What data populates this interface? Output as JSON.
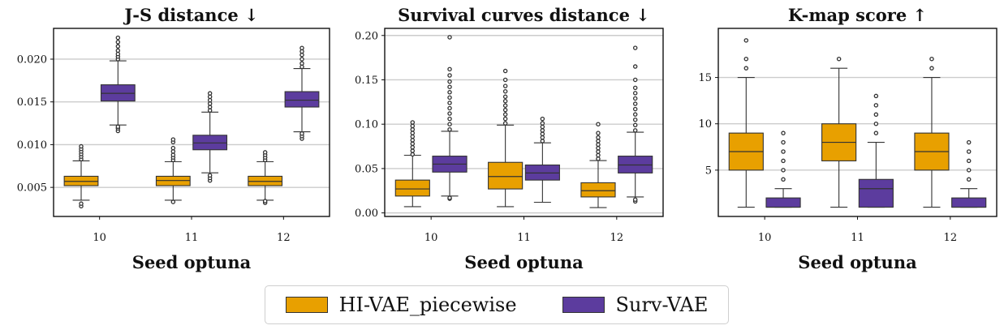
{
  "chart_data": [
    {
      "type": "box",
      "title": "J-S distance ↓",
      "xlabel": "Seed optuna",
      "ylabel": "",
      "categories": [
        "10",
        "11",
        "12"
      ],
      "ylim": [
        0.0016,
        0.0236
      ],
      "yticks": [
        0.005,
        0.01,
        0.015,
        0.02
      ],
      "ytick_labels": [
        "0.005",
        "0.010",
        "0.015",
        "0.020"
      ],
      "grid": "horizontal",
      "series": [
        {
          "name": "HI-VAE_piecewise",
          "boxes": [
            {
              "whislo": 0.0035,
              "q1": 0.0052,
              "med": 0.0057,
              "q3": 0.0063,
              "whishi": 0.0081,
              "fliers": [
                0.0028,
                0.0031,
                0.0083,
                0.0086,
                0.0089,
                0.0092,
                0.0095,
                0.0098
              ]
            },
            {
              "whislo": 0.0035,
              "q1": 0.0052,
              "med": 0.0058,
              "q3": 0.0063,
              "whishi": 0.008,
              "fliers": [
                0.0033,
                0.0082,
                0.0085,
                0.0088,
                0.0092,
                0.0096,
                0.0103,
                0.0106
              ]
            },
            {
              "whislo": 0.0035,
              "q1": 0.0052,
              "med": 0.0057,
              "q3": 0.0063,
              "whishi": 0.008,
              "fliers": [
                0.0032,
                0.0034,
                0.0082,
                0.0085,
                0.0088,
                0.0091
              ]
            }
          ]
        },
        {
          "name": "Surv-VAE",
          "boxes": [
            {
              "whislo": 0.0123,
              "q1": 0.0151,
              "med": 0.016,
              "q3": 0.017,
              "whishi": 0.0198,
              "fliers": [
                0.0116,
                0.0119,
                0.0121,
                0.02,
                0.0203,
                0.0206,
                0.021,
                0.0215,
                0.022,
                0.0225
              ]
            },
            {
              "whislo": 0.0067,
              "q1": 0.0094,
              "med": 0.0102,
              "q3": 0.0111,
              "whishi": 0.0138,
              "fliers": [
                0.0058,
                0.0061,
                0.0064,
                0.014,
                0.0144,
                0.0148,
                0.0152,
                0.0156,
                0.016
              ]
            },
            {
              "whislo": 0.0115,
              "q1": 0.0144,
              "med": 0.0152,
              "q3": 0.0162,
              "whishi": 0.0189,
              "fliers": [
                0.0107,
                0.011,
                0.0113,
                0.0191,
                0.0195,
                0.02,
                0.0205,
                0.0209,
                0.0213
              ]
            }
          ]
        }
      ]
    },
    {
      "type": "box",
      "title": "Survival curves distance ↓",
      "xlabel": "Seed optuna",
      "ylabel": "",
      "categories": [
        "10",
        "11",
        "12"
      ],
      "ylim": [
        -0.004,
        0.208
      ],
      "yticks": [
        0.0,
        0.05,
        0.1,
        0.15,
        0.2
      ],
      "ytick_labels": [
        "0.00",
        "0.05",
        "0.10",
        "0.15",
        "0.20"
      ],
      "grid": "horizontal",
      "series": [
        {
          "name": "HI-VAE_piecewise",
          "boxes": [
            {
              "whislo": 0.007,
              "q1": 0.019,
              "med": 0.027,
              "q3": 0.037,
              "whishi": 0.065,
              "fliers": [
                0.066,
                0.07,
                0.074,
                0.078,
                0.082,
                0.086,
                0.09,
                0.094,
                0.098,
                0.102
              ]
            },
            {
              "whislo": 0.007,
              "q1": 0.027,
              "med": 0.041,
              "q3": 0.057,
              "whishi": 0.099,
              "fliers": [
                0.101,
                0.106,
                0.111,
                0.116,
                0.121,
                0.126,
                0.131,
                0.137,
                0.143,
                0.15,
                0.16
              ]
            },
            {
              "whislo": 0.006,
              "q1": 0.018,
              "med": 0.025,
              "q3": 0.034,
              "whishi": 0.059,
              "fliers": [
                0.061,
                0.065,
                0.069,
                0.073,
                0.077,
                0.081,
                0.085,
                0.09,
                0.1
              ]
            }
          ]
        },
        {
          "name": "Surv-VAE",
          "boxes": [
            {
              "whislo": 0.019,
              "q1": 0.046,
              "med": 0.055,
              "q3": 0.064,
              "whishi": 0.092,
              "fliers": [
                0.016,
                0.017,
                0.094,
                0.1,
                0.106,
                0.112,
                0.118,
                0.124,
                0.13,
                0.136,
                0.142,
                0.148,
                0.155,
                0.162,
                0.198
              ]
            },
            {
              "whislo": 0.012,
              "q1": 0.037,
              "med": 0.045,
              "q3": 0.054,
              "whishi": 0.079,
              "fliers": [
                0.081,
                0.085,
                0.089,
                0.093,
                0.097,
                0.101,
                0.106
              ]
            },
            {
              "whislo": 0.018,
              "q1": 0.045,
              "med": 0.054,
              "q3": 0.064,
              "whishi": 0.091,
              "fliers": [
                0.013,
                0.015,
                0.093,
                0.099,
                0.105,
                0.111,
                0.117,
                0.123,
                0.129,
                0.135,
                0.141,
                0.15,
                0.165,
                0.186
              ]
            }
          ]
        }
      ]
    },
    {
      "type": "box",
      "title": "K-map score ↑",
      "xlabel": "Seed optuna",
      "ylabel": "",
      "categories": [
        "10",
        "11",
        "12"
      ],
      "ylim": [
        0,
        20.3
      ],
      "yticks": [
        5,
        10,
        15
      ],
      "ytick_labels": [
        "5",
        "10",
        "15"
      ],
      "grid": "horizontal",
      "series": [
        {
          "name": "HI-VAE_piecewise",
          "boxes": [
            {
              "whislo": 1,
              "q1": 5,
              "med": 7,
              "q3": 9,
              "whishi": 15,
              "fliers": [
                16,
                17,
                19
              ]
            },
            {
              "whislo": 1,
              "q1": 6,
              "med": 8,
              "q3": 10,
              "whishi": 16,
              "fliers": [
                17
              ]
            },
            {
              "whislo": 1,
              "q1": 5,
              "med": 7,
              "q3": 9,
              "whishi": 15,
              "fliers": [
                16,
                17
              ]
            }
          ]
        },
        {
          "name": "Surv-VAE",
          "boxes": [
            {
              "whislo": 1,
              "q1": 1,
              "med": 1,
              "q3": 2,
              "whishi": 3,
              "fliers": [
                4,
                5,
                6,
                7,
                8,
                9
              ]
            },
            {
              "whislo": 1,
              "q1": 1,
              "med": 3,
              "q3": 4,
              "whishi": 8,
              "fliers": [
                9,
                10,
                11,
                12,
                13
              ]
            },
            {
              "whislo": 1,
              "q1": 1,
              "med": 1,
              "q3": 2,
              "whishi": 3,
              "fliers": [
                4,
                5,
                6,
                7,
                8
              ]
            }
          ]
        }
      ]
    }
  ],
  "colors": {
    "HI-VAE_piecewise": "#e8a000",
    "Surv-VAE": "#5c3c9e",
    "grid": "#cccccc",
    "frame": "#111111",
    "line": "#333333"
  },
  "legend": {
    "placement": "bottom-center",
    "items": [
      {
        "label": "HI-VAE_piecewise",
        "color": "#e8a000"
      },
      {
        "label": "Surv-VAE",
        "color": "#5c3c9e"
      }
    ]
  }
}
